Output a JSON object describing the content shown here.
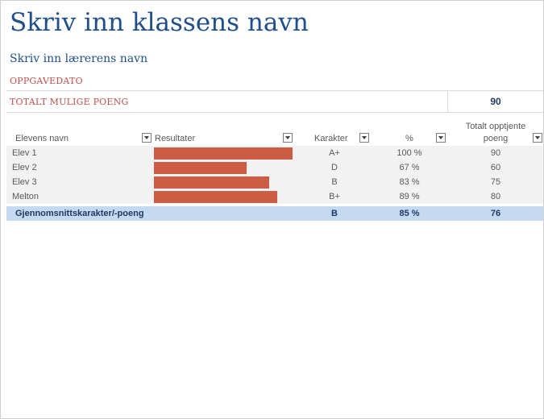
{
  "title": "Skriv inn klassens navn",
  "teacher": "Skriv inn lærerens navn",
  "assignment_date_label": "OPPGAVEDATO",
  "total_points_label": "TOTALT MULIGE POENG",
  "total_points_value": "90",
  "columns": {
    "name": "Elevens navn",
    "results": "Resultater",
    "grade": "Karakter",
    "percent": "%",
    "points_line1": "Totalt opptjente",
    "points_line2": "poeng"
  },
  "students": [
    {
      "name": "Elev 1",
      "grade": "A+",
      "percent": "100 %",
      "percent_value": 100,
      "points": "90"
    },
    {
      "name": "Elev 2",
      "grade": "D",
      "percent": "67 %",
      "percent_value": 67,
      "points": "60"
    },
    {
      "name": "Elev 3",
      "grade": "B",
      "percent": "83 %",
      "percent_value": 83,
      "points": "75"
    },
    {
      "name": "Melton",
      "grade": "B+",
      "percent": "89 %",
      "percent_value": 89,
      "points": "80"
    }
  ],
  "average": {
    "label": "Gjennomsnittskarakter/-poeng",
    "grade": "B",
    "percent": "85 %",
    "points": "76"
  },
  "colors": {
    "title": "#1f4e8c",
    "accent_red": "#c0504d",
    "bar": "#cd5c44",
    "average_row": "#c5d9f1"
  }
}
